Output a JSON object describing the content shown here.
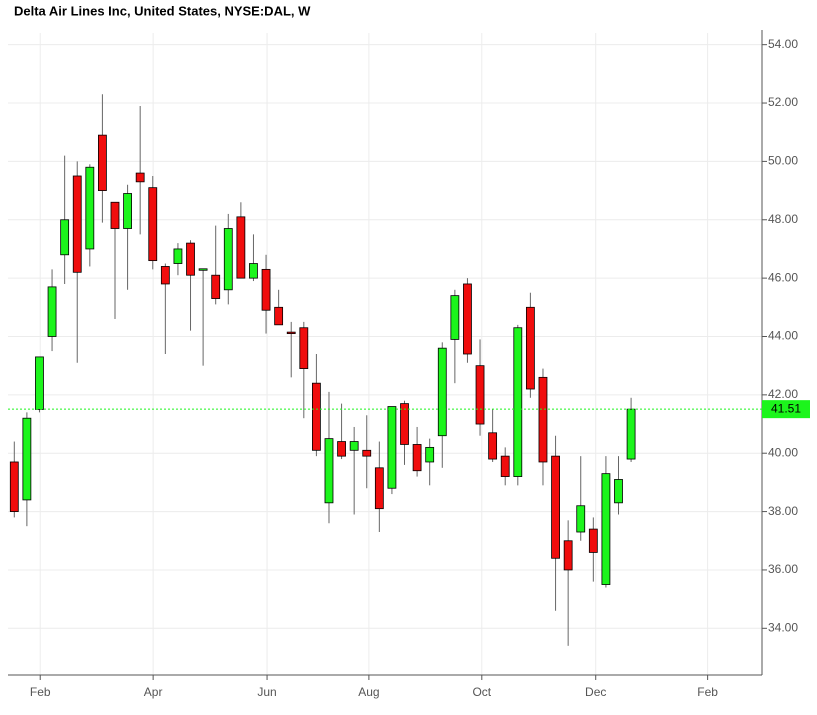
{
  "chart_data": {
    "type": "candlestick",
    "title": "Delta Air Lines Inc, United States, NYSE:DAL, W",
    "open": [
      39.7,
      38.4,
      41.5,
      44.0,
      46.8,
      49.5,
      47.0,
      50.9,
      48.6,
      47.7,
      49.6,
      49.1,
      46.4,
      46.5,
      47.2,
      46.28,
      46.1,
      45.6,
      48.1,
      46.0,
      46.3,
      45.0,
      44.15,
      44.3,
      42.4,
      38.3,
      40.4,
      40.1,
      40.1,
      39.5,
      38.8,
      41.7,
      40.3,
      39.7,
      40.6,
      43.9,
      45.8,
      43.0,
      40.7,
      39.9,
      39.2,
      45.0,
      42.6,
      39.9,
      37.0,
      37.3,
      37.4,
      35.5,
      38.3,
      39.8
    ],
    "high": [
      40.4,
      41.4,
      43.3,
      46.3,
      50.2,
      50.0,
      49.9,
      52.3,
      48.6,
      49.2,
      51.9,
      49.5,
      46.5,
      47.2,
      47.3,
      46.3,
      47.8,
      48.2,
      48.6,
      47.5,
      46.8,
      45.6,
      44.5,
      44.5,
      43.4,
      42.1,
      41.7,
      40.9,
      41.3,
      40.4,
      41.6,
      41.8,
      40.9,
      40.5,
      43.8,
      45.6,
      46.0,
      43.9,
      41.5,
      40.2,
      44.4,
      45.5,
      42.9,
      40.6,
      37.7,
      39.9,
      37.8,
      39.9,
      39.9,
      41.9
    ],
    "low": [
      37.8,
      37.5,
      41.4,
      43.5,
      45.8,
      43.1,
      46.4,
      47.9,
      44.6,
      45.6,
      47.5,
      46.3,
      43.4,
      46.1,
      44.2,
      43.0,
      45.1,
      45.1,
      46.0,
      45.9,
      44.1,
      44.4,
      42.6,
      41.2,
      39.9,
      37.6,
      39.8,
      37.9,
      38.8,
      37.3,
      38.6,
      39.6,
      39.2,
      38.9,
      39.5,
      42.4,
      43.1,
      40.6,
      39.7,
      38.9,
      38.9,
      41.9,
      38.9,
      34.6,
      33.4,
      37.0,
      35.6,
      35.4,
      37.9,
      39.7
    ],
    "close": [
      38.0,
      41.2,
      43.3,
      45.7,
      48.0,
      46.2,
      49.8,
      49.0,
      47.7,
      48.9,
      49.3,
      46.6,
      45.8,
      47.0,
      46.1,
      46.32,
      45.3,
      47.7,
      46.0,
      46.5,
      44.9,
      44.4,
      44.1,
      42.9,
      40.1,
      40.5,
      39.9,
      40.4,
      39.9,
      38.1,
      41.6,
      40.3,
      39.4,
      40.2,
      43.6,
      45.4,
      43.4,
      41.0,
      39.8,
      39.2,
      44.3,
      42.2,
      39.7,
      36.4,
      36.0,
      38.2,
      36.6,
      39.3,
      39.1,
      41.51
    ],
    "up_color": "#1cf51c",
    "down_color": "#f00d0d",
    "xlim": [
      -0.5,
      59.4
    ],
    "xticks": [
      {
        "value": 2.06,
        "label": "Feb"
      },
      {
        "value": 11.03,
        "label": "Apr"
      },
      {
        "value": 20.08,
        "label": "Jun"
      },
      {
        "value": 28.17,
        "label": "Aug"
      },
      {
        "value": 37.14,
        "label": "Oct"
      },
      {
        "value": 46.19,
        "label": "Dec"
      },
      {
        "value": 55.08,
        "label": "Feb"
      }
    ],
    "ylim": [
      32.4,
      54.4
    ],
    "yticks": [
      {
        "value": 34,
        "label": "34.00"
      },
      {
        "value": 36,
        "label": "36.00"
      },
      {
        "value": 38,
        "label": "38.00"
      },
      {
        "value": 40,
        "label": "40.00"
      },
      {
        "value": 42,
        "label": "42.00"
      },
      {
        "value": 44,
        "label": "44.00"
      },
      {
        "value": 46,
        "label": "46.00"
      },
      {
        "value": 48,
        "label": "48.00"
      },
      {
        "value": 50,
        "label": "50.00"
      },
      {
        "value": 52,
        "label": "52.00"
      },
      {
        "value": 54,
        "label": "54.00"
      }
    ],
    "grid": true
  }
}
